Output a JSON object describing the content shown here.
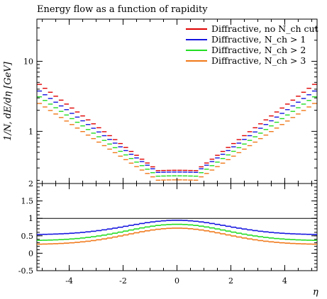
{
  "chart_data": {
    "type": "line",
    "title": "Energy flow as a function of rapidity",
    "xlabel": "η",
    "ylabel": "1/N, dE/dη [GeV]",
    "x_range": [
      -5.2,
      5.2
    ],
    "x_ticks": [
      -4,
      -2,
      0,
      2,
      4
    ],
    "x_tick_labels": [
      "-4",
      "-2",
      "0",
      "2",
      "4"
    ],
    "main_panel": {
      "ylim": [
        0.18,
        40
      ],
      "log_scale": true,
      "y_tick_labels": [
        {
          "value": 1,
          "label": "1"
        },
        {
          "value": 10,
          "label": "10"
        }
      ],
      "legend_position": "top-right",
      "series": [
        {
          "name": "Diffractive, no N_ch cut",
          "color": "#e00000",
          "edge": 5.0,
          "center": 0.27
        },
        {
          "name": "Diffractive, N_ch > 1",
          "color": "#1414e0",
          "edge": 4.0,
          "center": 0.255
        },
        {
          "name": "Diffractive, N_ch > 2",
          "color": "#22dd22",
          "edge": 3.3,
          "center": 0.225
        },
        {
          "name": "Diffractive, N_ch > 3",
          "color": "#f07818",
          "edge": 2.65,
          "center": 0.197
        }
      ],
      "edge_x": 5.2
    },
    "ratio_panel": {
      "ylim": [
        -0.5,
        2.0
      ],
      "y_ticks": [
        -0.5,
        0,
        0.5,
        1,
        1.5,
        2
      ],
      "y_tick_labels": [
        "-0.5",
        "0",
        "0.5",
        "1",
        "1.5",
        "2"
      ],
      "reference_line": 1,
      "series": [
        {
          "name": "Diffractive, N_ch > 1",
          "color": "#1414e0",
          "edge": 0.53,
          "center": 0.945
        },
        {
          "name": "Diffractive, N_ch > 2",
          "color": "#22dd22",
          "edge": 0.36,
          "center": 0.83
        },
        {
          "name": "Diffractive, N_ch > 3",
          "color": "#f07818",
          "edge": 0.25,
          "center": 0.72
        }
      ]
    }
  }
}
